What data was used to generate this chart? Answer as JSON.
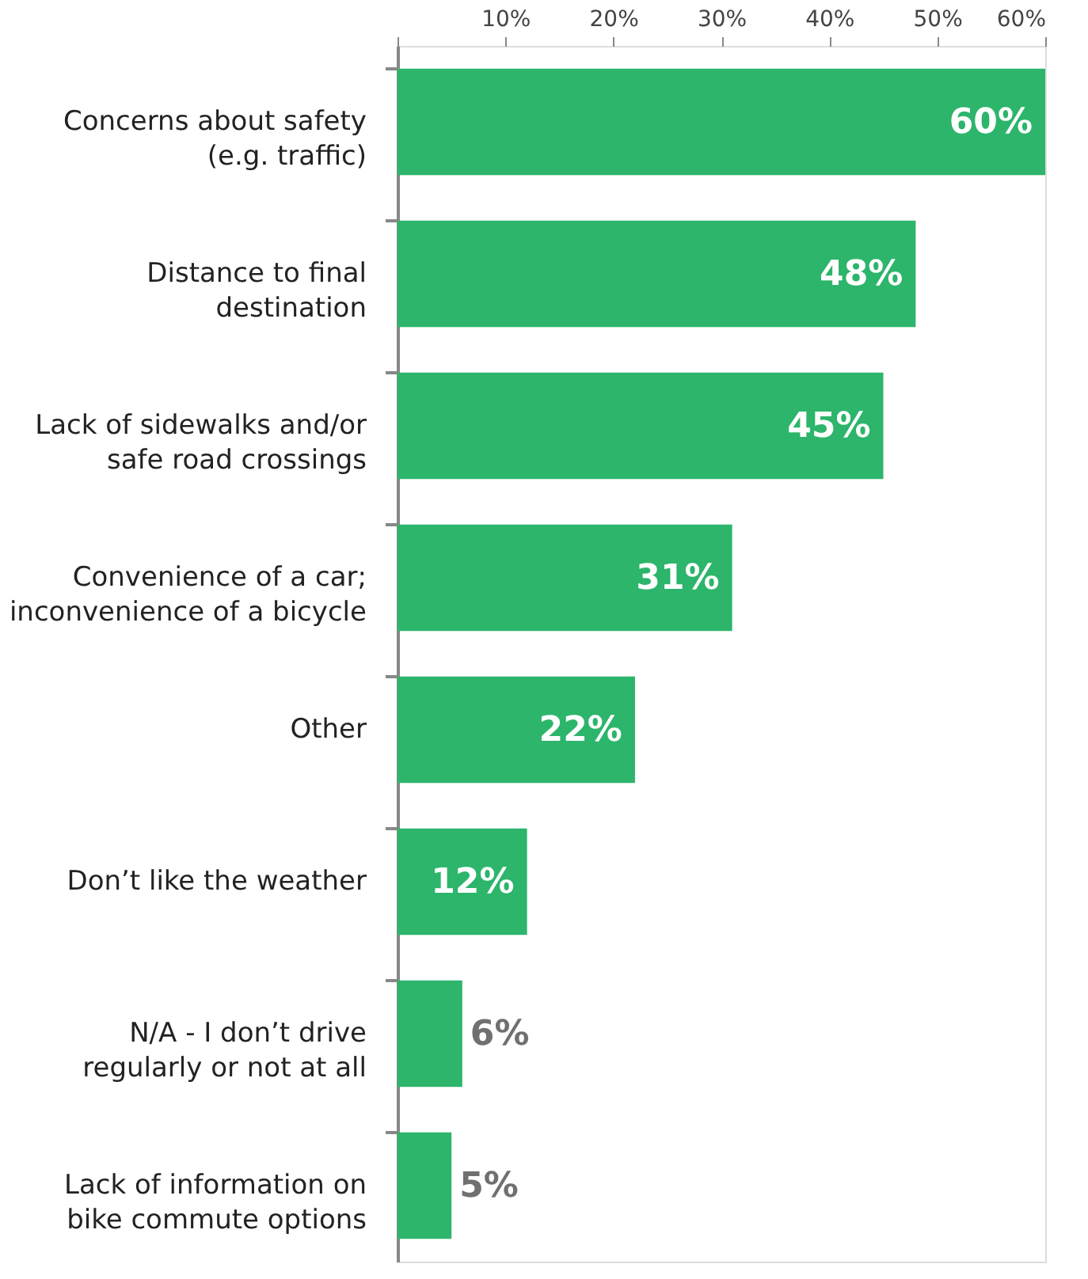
{
  "chart_data": {
    "type": "bar",
    "orientation": "horizontal",
    "categories": [
      "Concerns about safety\n(e.g. traffic)",
      "Distance to final\ndestination",
      "Lack of sidewalks and/or\nsafe road crossings",
      "Convenience of a car;\ninconvenience of a bicycle",
      "Other",
      "Don’t like the weather",
      "N/A - I don’t drive\nregularly or not at all",
      "Lack of information on\nbike commute options"
    ],
    "values": [
      60,
      48,
      45,
      31,
      22,
      12,
      6,
      5
    ],
    "value_labels": [
      "60%",
      "48%",
      "45%",
      "31%",
      "22%",
      "12%",
      "6%",
      "5%"
    ],
    "color": "#2cb56b",
    "xlim": [
      0,
      60
    ],
    "xticks": [
      {
        "value": 0,
        "label": null
      },
      {
        "value": 10,
        "label": "10%"
      },
      {
        "value": 20,
        "label": "20%"
      },
      {
        "value": 30,
        "label": "30%"
      },
      {
        "value": 40,
        "label": "40%"
      },
      {
        "value": 50,
        "label": "50%"
      },
      {
        "value": 60,
        "label": "60%"
      }
    ],
    "grid": false
  }
}
